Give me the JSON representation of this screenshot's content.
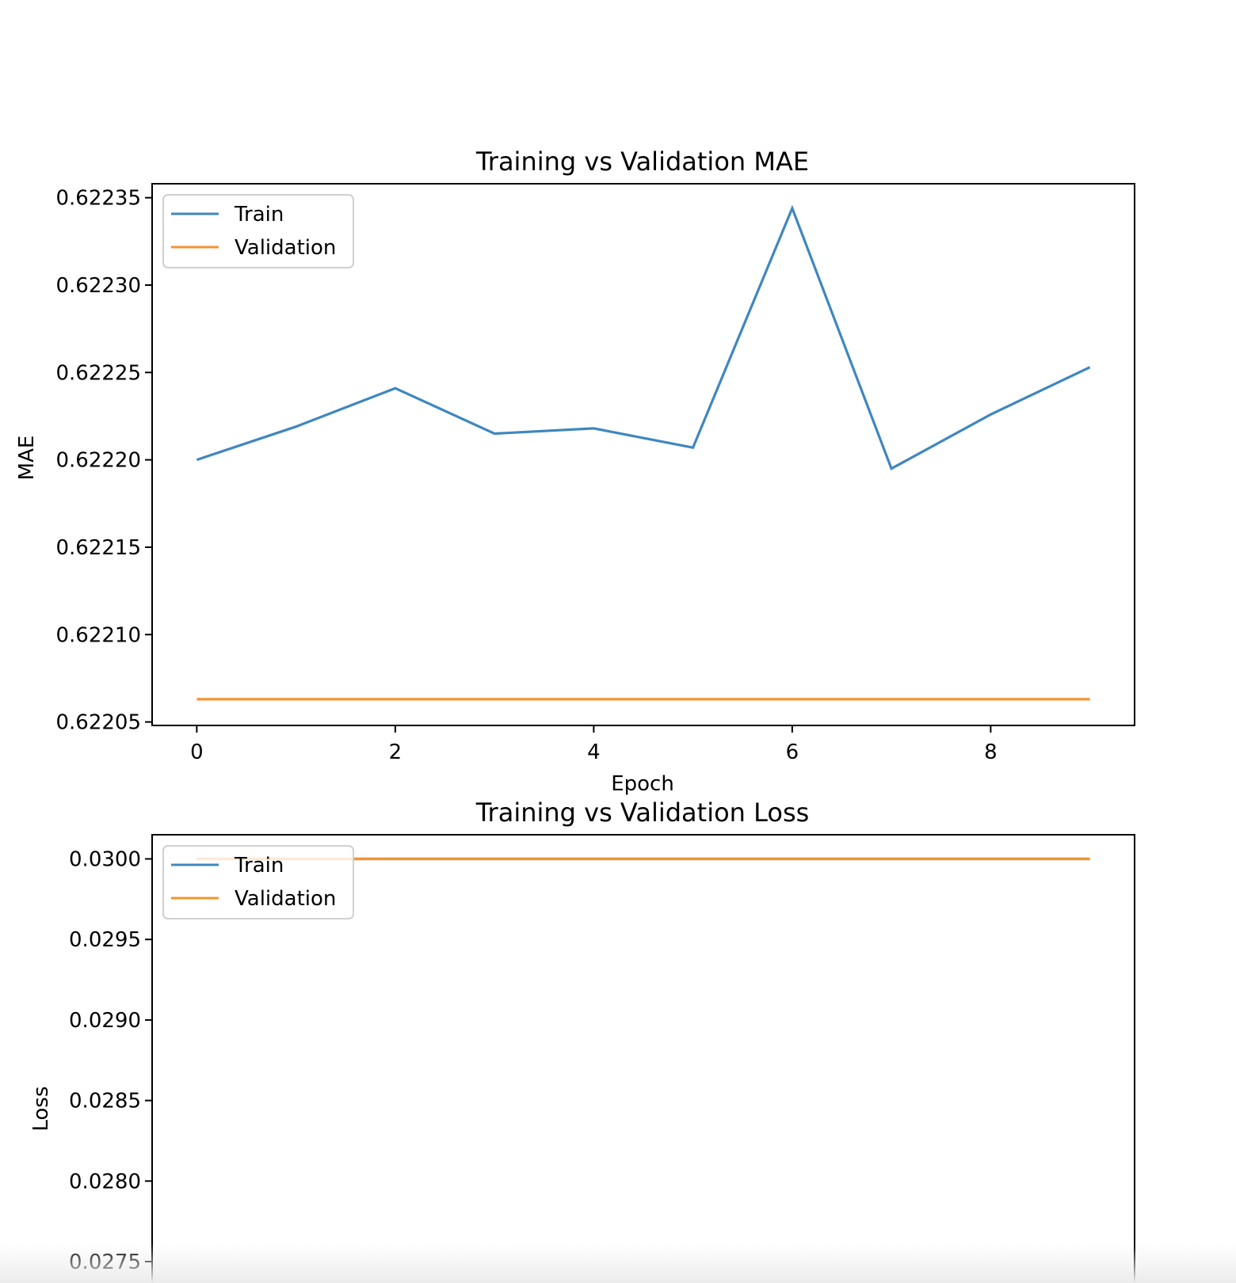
{
  "chart_data": [
    {
      "type": "line",
      "title": "Training vs Validation MAE",
      "xlabel": "Epoch",
      "ylabel": "MAE",
      "xlim": [
        -0.45,
        9.45
      ],
      "ylim": [
        0.622048,
        0.622358
      ],
      "xticks": [
        0,
        2,
        4,
        6,
        8
      ],
      "xtick_labels": [
        "0",
        "2",
        "4",
        "6",
        "8"
      ],
      "yticks": [
        0.62205,
        0.6221,
        0.62215,
        0.6222,
        0.62225,
        0.6223,
        0.62235
      ],
      "ytick_labels": [
        "0.62205",
        "0.62210",
        "0.62215",
        "0.62220",
        "0.62225",
        "0.62230",
        "0.62235"
      ],
      "grid": false,
      "legend": "upper left",
      "x": [
        0,
        1,
        2,
        3,
        4,
        5,
        6,
        7,
        8,
        9
      ],
      "series": [
        {
          "name": "Train",
          "color": "#3f87bf",
          "values": [
            0.6222,
            0.622219,
            0.622241,
            0.622215,
            0.622218,
            0.622207,
            0.622344,
            0.622195,
            0.622226,
            0.622253
          ]
        },
        {
          "name": "Validation",
          "color": "#f39333",
          "values": [
            0.622063,
            0.622063,
            0.622063,
            0.622063,
            0.622063,
            0.622063,
            0.622063,
            0.622063,
            0.622063,
            0.622063
          ]
        }
      ]
    },
    {
      "type": "line",
      "title": "Training vs Validation Loss",
      "xlabel": "",
      "ylabel": "Loss",
      "xlim": [
        -0.45,
        9.45
      ],
      "ylim": [
        0.0272,
        0.03015
      ],
      "xticks": [],
      "xtick_labels": [],
      "yticks": [
        0.0275,
        0.028,
        0.0285,
        0.029,
        0.0295,
        0.03
      ],
      "ytick_labels": [
        "0.0275",
        "0.0280",
        "0.0285",
        "0.0290",
        "0.0295",
        "0.0300"
      ],
      "grid": false,
      "legend": "upper left",
      "x": [
        0,
        1,
        2,
        3,
        4,
        5,
        6,
        7,
        8,
        9
      ],
      "series": [
        {
          "name": "Train",
          "color": "#3f87bf",
          "values": [
            0.03,
            0.03,
            0.03,
            0.03,
            0.03,
            0.03,
            0.03,
            0.03,
            0.03,
            0.03
          ]
        },
        {
          "name": "Validation",
          "color": "#f39333",
          "values": [
            0.03,
            0.03,
            0.03,
            0.03,
            0.03,
            0.03,
            0.03,
            0.03,
            0.03,
            0.03
          ]
        }
      ]
    }
  ]
}
